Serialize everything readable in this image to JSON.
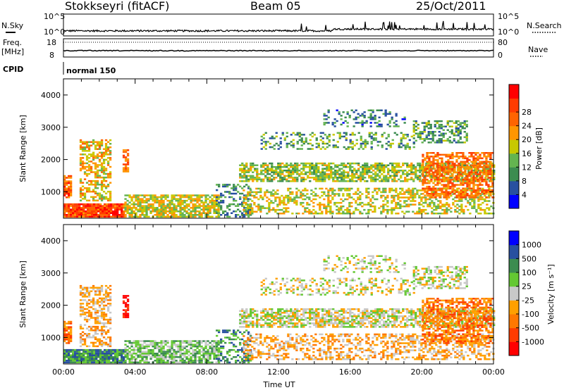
{
  "header": {
    "station": "Stokkseyri (fitACF)",
    "beam": "Beam 05",
    "date": "25/Oct/2011"
  },
  "strip": {
    "nsky_label": "N.Sky",
    "nsearch_label": "N.Search",
    "freq_label_line1": "Freq.",
    "freq_label_line2": "[MHz]",
    "nave_label": "Nave",
    "cpid_label": "CPID",
    "cpid_value": "normal 150",
    "noise_left_ticks": [
      "10^5",
      "10^0"
    ],
    "noise_right_ticks": [
      "10^5",
      "10^0"
    ],
    "freq_ticks": [
      "18",
      "8"
    ],
    "nave_ticks": [
      "80",
      "0"
    ]
  },
  "colors": {
    "power": [
      "#0000ff",
      "#2850a0",
      "#3c8c50",
      "#64b450",
      "#c8c800",
      "#ff9600",
      "#ff6400",
      "#ff3c00",
      "#ff0000"
    ],
    "velocity": [
      "#ff0000",
      "#ff3c00",
      "#ff7800",
      "#ffa000",
      "#c8c8c8",
      "#64c832",
      "#3c8c50",
      "#2850a0",
      "#0000ff"
    ]
  },
  "chart_data": [
    {
      "type": "heatmap",
      "panel": "power",
      "ylabel": "Slant Range [km]",
      "y_ticks": [
        "1000",
        "2000",
        "3000",
        "4000"
      ],
      "ylim": [
        180,
        4500
      ],
      "xlim": [
        "00:00",
        "24:00"
      ],
      "colorbar_label": "Power [dB]",
      "colorbar_ticks": [
        "4",
        "8",
        "12",
        "16",
        "20",
        "24",
        "28"
      ],
      "colorbar_range": [
        0,
        30
      ]
    },
    {
      "type": "heatmap",
      "panel": "velocity",
      "xlabel": "Time UT",
      "ylabel": "Slant Range [km]",
      "x_ticks": [
        "00:00",
        "04:00",
        "08:00",
        "12:00",
        "16:00",
        "20:00",
        "00:00"
      ],
      "y_ticks": [
        "1000",
        "2000",
        "3000",
        "4000"
      ],
      "ylim": [
        180,
        4500
      ],
      "xlim": [
        "00:00",
        "24:00"
      ],
      "colorbar_label": "Velocity [m s⁻¹]",
      "colorbar_ticks": [
        "1000",
        "500",
        "100",
        "25",
        "-25",
        "-100",
        "-500",
        "-1000"
      ]
    }
  ]
}
